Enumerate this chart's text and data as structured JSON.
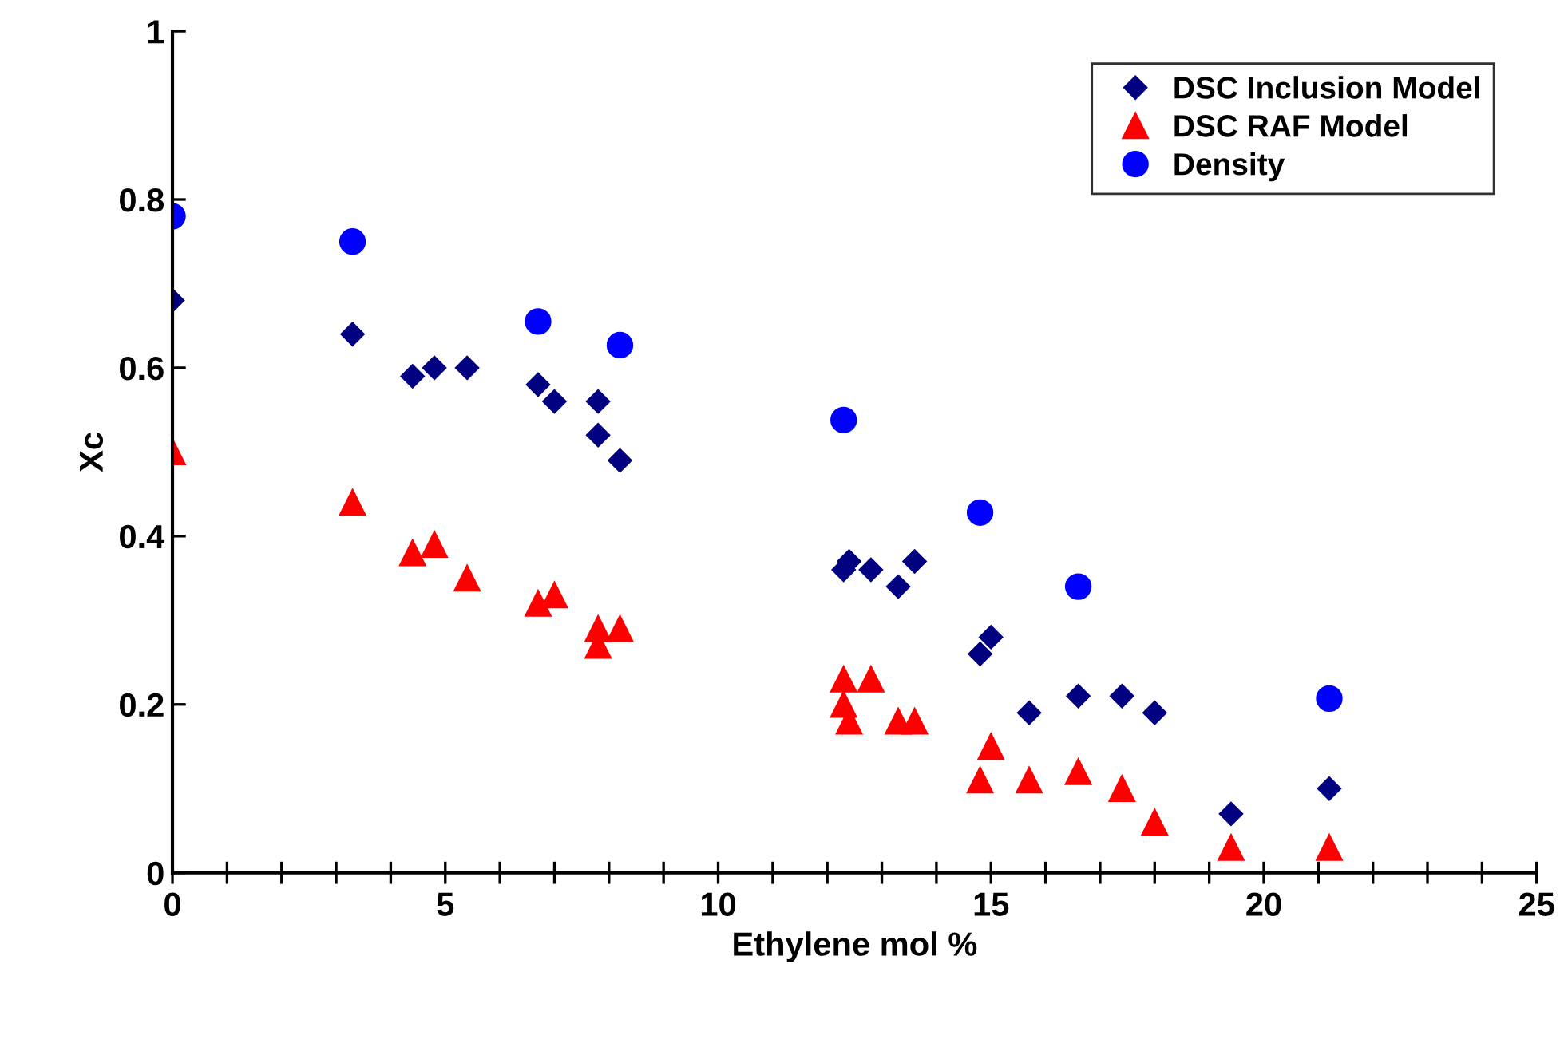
{
  "chart_data": {
    "type": "scatter",
    "xlabel": "Ethylene mol %",
    "ylabel": "Xc",
    "xlim": [
      0,
      25
    ],
    "ylim": [
      0,
      1
    ],
    "xticks": [
      0,
      {
        "value": 1,
        "label": null
      },
      {
        "value": 2,
        "label": null
      },
      {
        "value": 3,
        "label": null
      },
      {
        "value": 4,
        "label": null
      },
      5,
      {
        "value": 6,
        "label": null
      },
      {
        "value": 7,
        "label": null
      },
      {
        "value": 8,
        "label": null
      },
      {
        "value": 9,
        "label": null
      },
      10,
      {
        "value": 11,
        "label": null
      },
      {
        "value": 12,
        "label": null
      },
      {
        "value": 13,
        "label": null
      },
      {
        "value": 14,
        "label": null
      },
      15,
      {
        "value": 16,
        "label": null
      },
      {
        "value": 17,
        "label": null
      },
      {
        "value": 18,
        "label": null
      },
      {
        "value": 19,
        "label": null
      },
      20,
      {
        "value": 21,
        "label": null
      },
      {
        "value": 22,
        "label": null
      },
      {
        "value": 23,
        "label": null
      },
      {
        "value": 24,
        "label": null
      },
      25
    ],
    "yticks": [
      0,
      0.2,
      0.4,
      0.6,
      0.8,
      1
    ],
    "grid": false,
    "legend": "top right",
    "series": [
      {
        "name": "DSC Inclusion Model",
        "color": "#000080",
        "marker": "diamond",
        "x": [
          0,
          3.3,
          4.4,
          4.8,
          5.4,
          6.7,
          7.0,
          7.8,
          7.8,
          8.2,
          12.3,
          12.4,
          12.8,
          13.3,
          13.6,
          14.8,
          15.0,
          15.7,
          16.6,
          17.4,
          18.0,
          19.4,
          21.2
        ],
        "values": [
          0.68,
          0.64,
          0.59,
          0.6,
          0.6,
          0.58,
          0.56,
          0.56,
          0.52,
          0.49,
          0.36,
          0.37,
          0.36,
          0.34,
          0.37,
          0.26,
          0.28,
          0.19,
          0.21,
          0.21,
          0.19,
          0.07,
          0.1
        ]
      },
      {
        "name": "DSC RAF Model",
        "color": "#ff0000",
        "marker": "triangle",
        "x": [
          0,
          3.3,
          4.4,
          4.8,
          5.4,
          6.7,
          7.0,
          7.8,
          7.8,
          8.2,
          12.3,
          12.3,
          12.4,
          12.8,
          13.3,
          13.6,
          14.8,
          15.0,
          15.7,
          16.6,
          17.4,
          18.0,
          19.4,
          21.2
        ],
        "values": [
          0.5,
          0.44,
          0.38,
          0.39,
          0.35,
          0.32,
          0.33,
          0.29,
          0.27,
          0.29,
          0.23,
          0.2,
          0.18,
          0.23,
          0.18,
          0.18,
          0.11,
          0.15,
          0.11,
          0.12,
          0.1,
          0.06,
          0.03,
          0.03
        ]
      },
      {
        "name": "Density",
        "color": "#0000ff",
        "marker": "circle",
        "x": [
          0,
          3.3,
          6.7,
          8.2,
          12.3,
          14.8,
          16.6,
          21.2
        ],
        "values": [
          0.78,
          0.75,
          0.655,
          0.627,
          0.538,
          0.428,
          0.34,
          0.207
        ]
      }
    ]
  }
}
